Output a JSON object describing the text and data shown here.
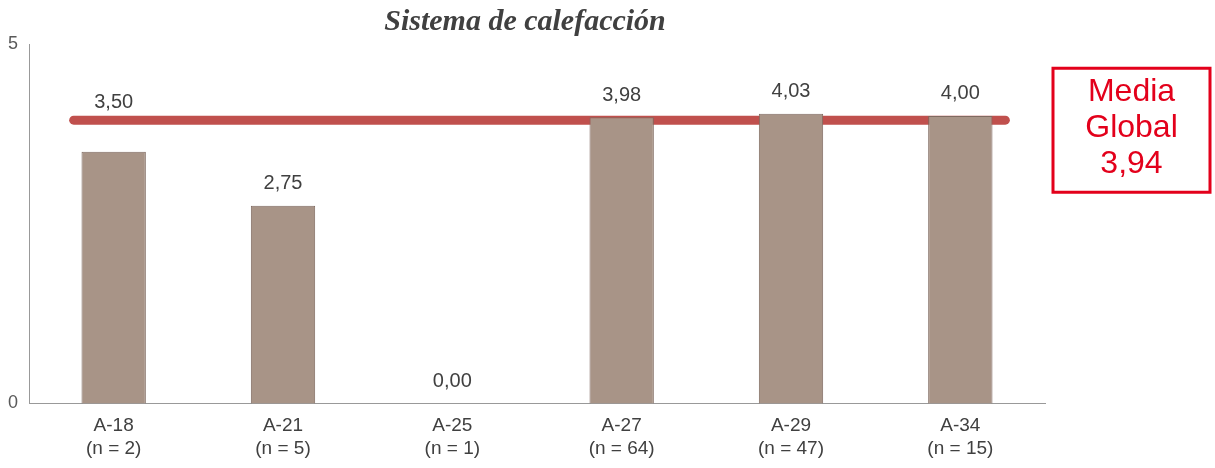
{
  "chart_data": {
    "type": "bar",
    "title": "Sistema de calefacción",
    "categories": [
      "A-18\n(n = 2)",
      "A-21\n(n = 5)",
      "A-25\n(n = 1)",
      "A-27\n(n = 64)",
      "A-29\n(n = 47)",
      "A-34\n(n = 15)"
    ],
    "values": [
      3.5,
      2.75,
      0,
      3.98,
      4.03,
      4.0
    ],
    "value_labels": [
      "3,50",
      "2,75",
      "0,00",
      "3,98",
      "4,03",
      "4,00"
    ],
    "color": "#a89487",
    "ylim": [
      0,
      5
    ],
    "yticks": [
      0,
      5
    ],
    "grid": false,
    "legend": false,
    "ref_lines": [
      {
        "axis": "y",
        "value": 3.94,
        "label": "Media Global 3,94",
        "color": "#c0504d"
      }
    ]
  }
}
